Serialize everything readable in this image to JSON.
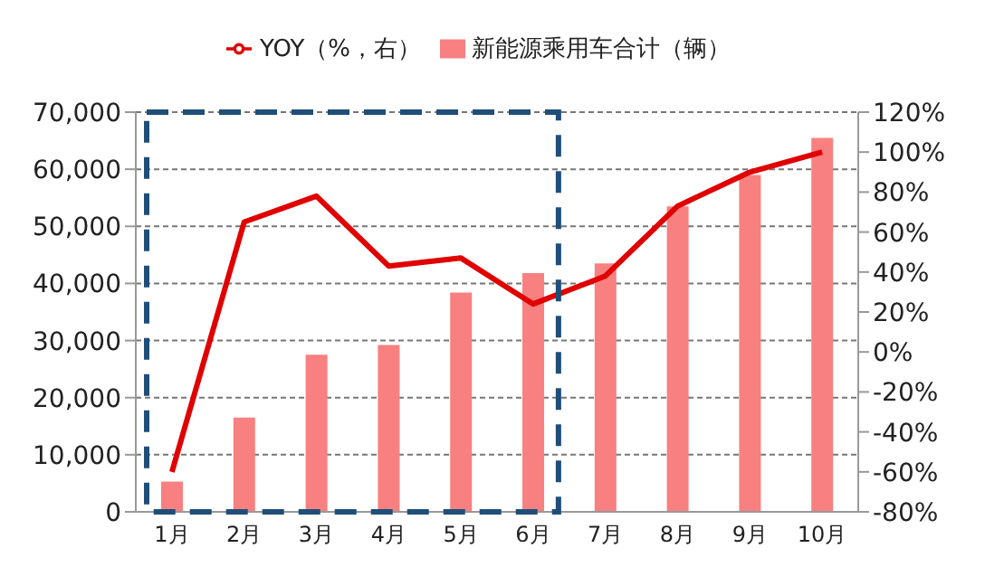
{
  "chart_data": {
    "type": "bar",
    "categories": [
      "1月",
      "2月",
      "3月",
      "4月",
      "5月",
      "6月",
      "7月",
      "8月",
      "9月",
      "10月"
    ],
    "series": [
      {
        "name": "新能源乘用车合计（辆）",
        "color": "#f88080",
        "values": [
          5300,
          16500,
          27500,
          29200,
          38400,
          41800,
          43500,
          53500,
          59000,
          65500
        ]
      },
      {
        "name": "YOY（%，右）",
        "type": "line",
        "axis": "y2",
        "color": "#e00000",
        "values": [
          -60,
          65,
          78,
          43,
          47,
          24,
          38,
          73,
          90,
          100
        ]
      }
    ],
    "ylim": [
      0,
      70000
    ],
    "yticks": [
      {
        "value": 0,
        "label": "0"
      },
      {
        "value": 10000,
        "label": "10,000"
      },
      {
        "value": 20000,
        "label": "20,000"
      },
      {
        "value": 30000,
        "label": "30,000"
      },
      {
        "value": 40000,
        "label": "40,000"
      },
      {
        "value": 50000,
        "label": "50,000"
      },
      {
        "value": 60000,
        "label": "60,000"
      },
      {
        "value": 70000,
        "label": "70,000"
      }
    ],
    "y2lim": [
      -80,
      120
    ],
    "y2ticks": [
      {
        "value": -80,
        "label": "-80%"
      },
      {
        "value": -60,
        "label": "-60%"
      },
      {
        "value": -40,
        "label": "-40%"
      },
      {
        "value": -20,
        "label": "-20%"
      },
      {
        "value": 0,
        "label": "0%"
      },
      {
        "value": 20,
        "label": "20%"
      },
      {
        "value": 40,
        "label": "40%"
      },
      {
        "value": 60,
        "label": "60%"
      },
      {
        "value": 80,
        "label": "80%"
      },
      {
        "value": 100,
        "label": "100%"
      },
      {
        "value": 120,
        "label": "120%"
      }
    ],
    "grid": "y",
    "legend": "top",
    "marker": "none"
  }
}
